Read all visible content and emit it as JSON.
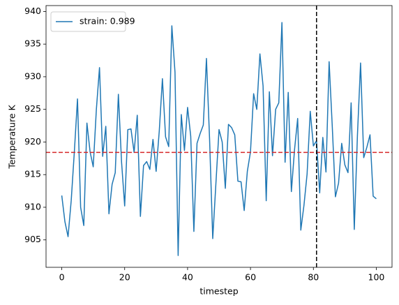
{
  "chart_data": {
    "type": "line",
    "xlabel": "timestep",
    "ylabel": "Temperature K",
    "x": [
      0,
      1,
      2,
      3,
      4,
      5,
      6,
      7,
      8,
      9,
      10,
      11,
      12,
      13,
      14,
      15,
      16,
      17,
      18,
      19,
      20,
      21,
      22,
      23,
      24,
      25,
      26,
      27,
      28,
      29,
      30,
      31,
      32,
      33,
      34,
      35,
      36,
      37,
      38,
      39,
      40,
      41,
      42,
      43,
      44,
      45,
      46,
      47,
      48,
      49,
      50,
      51,
      52,
      53,
      54,
      55,
      56,
      57,
      58,
      59,
      60,
      61,
      62,
      63,
      64,
      65,
      66,
      67,
      68,
      69,
      70,
      71,
      72,
      73,
      74,
      75,
      76,
      77,
      78,
      79,
      80,
      81,
      82,
      83,
      84,
      85,
      86,
      87,
      88,
      89,
      90,
      91,
      92,
      93,
      94,
      95,
      96,
      97,
      98,
      99,
      100
    ],
    "series": [
      {
        "name": "strain: 0.989",
        "color": "#1f77b4",
        "values": [
          911.8,
          907.8,
          905.5,
          911,
          918.5,
          926.6,
          910,
          907.2,
          922.9,
          918.5,
          916.2,
          925,
          931.4,
          917.8,
          922.4,
          909,
          913.5,
          915.3,
          927.3,
          917,
          910.2,
          921.9,
          922,
          918.4,
          924.1,
          908.6,
          916.4,
          917,
          915.8,
          920.4,
          915.5,
          921.7,
          929.7,
          920.8,
          919.3,
          937.8,
          930.7,
          902.6,
          924.2,
          918.7,
          925.3,
          920.9,
          906.3,
          919.8,
          921.3,
          922.6,
          932.8,
          920.4,
          905.2,
          913.6,
          921.9,
          920,
          912.9,
          922.7,
          922.2,
          921.1,
          914,
          913.9,
          909.5,
          915.5,
          918.5,
          927.4,
          925,
          933.5,
          928.6,
          911,
          927.7,
          917.9,
          925,
          926,
          938.3,
          916.9,
          927.6,
          912.4,
          918.8,
          923.6,
          906.5,
          910.3,
          915.1,
          924.7,
          919.4,
          920.2,
          912.2,
          920.7,
          915.4,
          932.3,
          922.4,
          911.6,
          913.7,
          919.8,
          916.5,
          915.3,
          926,
          906.6,
          921,
          932.1,
          917.6,
          919.2,
          921.1,
          911.7,
          911.3
        ]
      }
    ],
    "hline": {
      "value": 918.4,
      "color": "#d62728"
    },
    "vline": {
      "value": 81,
      "color": "#000000"
    },
    "xlim": [
      -5,
      105
    ],
    "ylim": [
      900.8,
      940.9
    ],
    "xticks": [
      0,
      20,
      40,
      60,
      80,
      100
    ],
    "yticks": [
      905,
      910,
      915,
      920,
      925,
      930,
      935,
      940
    ],
    "legend": "upper left"
  }
}
